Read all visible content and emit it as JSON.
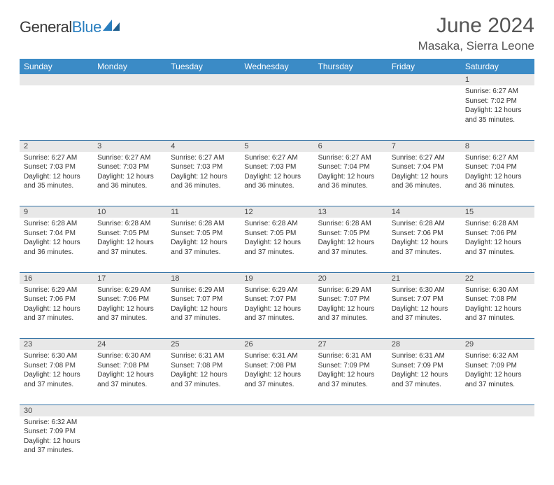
{
  "logo": {
    "text1": "General",
    "text2": "Blue"
  },
  "title": "June 2024",
  "location": "Masaka, Sierra Leone",
  "weekday_header_bg": "#3b8bc6",
  "weekday_header_fg": "#ffffff",
  "daynum_bg": "#e8e8e8",
  "row_border_color": "#2f6fa3",
  "weekdays": [
    "Sunday",
    "Monday",
    "Tuesday",
    "Wednesday",
    "Thursday",
    "Friday",
    "Saturday"
  ],
  "weeks": [
    [
      null,
      null,
      null,
      null,
      null,
      null,
      {
        "n": "1",
        "sunrise": "Sunrise: 6:27 AM",
        "sunset": "Sunset: 7:02 PM",
        "daylight": "Daylight: 12 hours and 35 minutes."
      }
    ],
    [
      {
        "n": "2",
        "sunrise": "Sunrise: 6:27 AM",
        "sunset": "Sunset: 7:03 PM",
        "daylight": "Daylight: 12 hours and 35 minutes."
      },
      {
        "n": "3",
        "sunrise": "Sunrise: 6:27 AM",
        "sunset": "Sunset: 7:03 PM",
        "daylight": "Daylight: 12 hours and 36 minutes."
      },
      {
        "n": "4",
        "sunrise": "Sunrise: 6:27 AM",
        "sunset": "Sunset: 7:03 PM",
        "daylight": "Daylight: 12 hours and 36 minutes."
      },
      {
        "n": "5",
        "sunrise": "Sunrise: 6:27 AM",
        "sunset": "Sunset: 7:03 PM",
        "daylight": "Daylight: 12 hours and 36 minutes."
      },
      {
        "n": "6",
        "sunrise": "Sunrise: 6:27 AM",
        "sunset": "Sunset: 7:04 PM",
        "daylight": "Daylight: 12 hours and 36 minutes."
      },
      {
        "n": "7",
        "sunrise": "Sunrise: 6:27 AM",
        "sunset": "Sunset: 7:04 PM",
        "daylight": "Daylight: 12 hours and 36 minutes."
      },
      {
        "n": "8",
        "sunrise": "Sunrise: 6:27 AM",
        "sunset": "Sunset: 7:04 PM",
        "daylight": "Daylight: 12 hours and 36 minutes."
      }
    ],
    [
      {
        "n": "9",
        "sunrise": "Sunrise: 6:28 AM",
        "sunset": "Sunset: 7:04 PM",
        "daylight": "Daylight: 12 hours and 36 minutes."
      },
      {
        "n": "10",
        "sunrise": "Sunrise: 6:28 AM",
        "sunset": "Sunset: 7:05 PM",
        "daylight": "Daylight: 12 hours and 37 minutes."
      },
      {
        "n": "11",
        "sunrise": "Sunrise: 6:28 AM",
        "sunset": "Sunset: 7:05 PM",
        "daylight": "Daylight: 12 hours and 37 minutes."
      },
      {
        "n": "12",
        "sunrise": "Sunrise: 6:28 AM",
        "sunset": "Sunset: 7:05 PM",
        "daylight": "Daylight: 12 hours and 37 minutes."
      },
      {
        "n": "13",
        "sunrise": "Sunrise: 6:28 AM",
        "sunset": "Sunset: 7:05 PM",
        "daylight": "Daylight: 12 hours and 37 minutes."
      },
      {
        "n": "14",
        "sunrise": "Sunrise: 6:28 AM",
        "sunset": "Sunset: 7:06 PM",
        "daylight": "Daylight: 12 hours and 37 minutes."
      },
      {
        "n": "15",
        "sunrise": "Sunrise: 6:28 AM",
        "sunset": "Sunset: 7:06 PM",
        "daylight": "Daylight: 12 hours and 37 minutes."
      }
    ],
    [
      {
        "n": "16",
        "sunrise": "Sunrise: 6:29 AM",
        "sunset": "Sunset: 7:06 PM",
        "daylight": "Daylight: 12 hours and 37 minutes."
      },
      {
        "n": "17",
        "sunrise": "Sunrise: 6:29 AM",
        "sunset": "Sunset: 7:06 PM",
        "daylight": "Daylight: 12 hours and 37 minutes."
      },
      {
        "n": "18",
        "sunrise": "Sunrise: 6:29 AM",
        "sunset": "Sunset: 7:07 PM",
        "daylight": "Daylight: 12 hours and 37 minutes."
      },
      {
        "n": "19",
        "sunrise": "Sunrise: 6:29 AM",
        "sunset": "Sunset: 7:07 PM",
        "daylight": "Daylight: 12 hours and 37 minutes."
      },
      {
        "n": "20",
        "sunrise": "Sunrise: 6:29 AM",
        "sunset": "Sunset: 7:07 PM",
        "daylight": "Daylight: 12 hours and 37 minutes."
      },
      {
        "n": "21",
        "sunrise": "Sunrise: 6:30 AM",
        "sunset": "Sunset: 7:07 PM",
        "daylight": "Daylight: 12 hours and 37 minutes."
      },
      {
        "n": "22",
        "sunrise": "Sunrise: 6:30 AM",
        "sunset": "Sunset: 7:08 PM",
        "daylight": "Daylight: 12 hours and 37 minutes."
      }
    ],
    [
      {
        "n": "23",
        "sunrise": "Sunrise: 6:30 AM",
        "sunset": "Sunset: 7:08 PM",
        "daylight": "Daylight: 12 hours and 37 minutes."
      },
      {
        "n": "24",
        "sunrise": "Sunrise: 6:30 AM",
        "sunset": "Sunset: 7:08 PM",
        "daylight": "Daylight: 12 hours and 37 minutes."
      },
      {
        "n": "25",
        "sunrise": "Sunrise: 6:31 AM",
        "sunset": "Sunset: 7:08 PM",
        "daylight": "Daylight: 12 hours and 37 minutes."
      },
      {
        "n": "26",
        "sunrise": "Sunrise: 6:31 AM",
        "sunset": "Sunset: 7:08 PM",
        "daylight": "Daylight: 12 hours and 37 minutes."
      },
      {
        "n": "27",
        "sunrise": "Sunrise: 6:31 AM",
        "sunset": "Sunset: 7:09 PM",
        "daylight": "Daylight: 12 hours and 37 minutes."
      },
      {
        "n": "28",
        "sunrise": "Sunrise: 6:31 AM",
        "sunset": "Sunset: 7:09 PM",
        "daylight": "Daylight: 12 hours and 37 minutes."
      },
      {
        "n": "29",
        "sunrise": "Sunrise: 6:32 AM",
        "sunset": "Sunset: 7:09 PM",
        "daylight": "Daylight: 12 hours and 37 minutes."
      }
    ],
    [
      {
        "n": "30",
        "sunrise": "Sunrise: 6:32 AM",
        "sunset": "Sunset: 7:09 PM",
        "daylight": "Daylight: 12 hours and 37 minutes."
      },
      null,
      null,
      null,
      null,
      null,
      null
    ]
  ]
}
